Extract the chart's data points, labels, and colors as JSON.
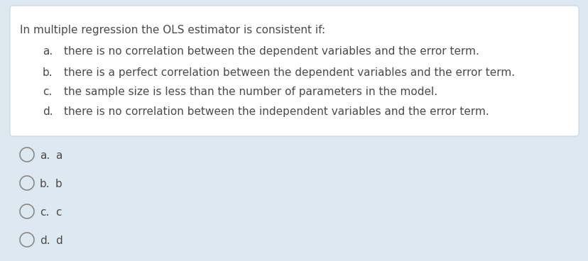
{
  "background_color": "#dce9f0",
  "box_color": "#ffffff",
  "box_edge_color": "#c8d8e0",
  "question": "In multiple regression the OLS estimator is consistent if:",
  "options": [
    {
      "label": "a.",
      "text": "there is no correlation between the dependent variables and the error term."
    },
    {
      "label": "b.",
      "text": "there is a perfect correlation between the dependent variables and the error term."
    },
    {
      "label": "c.",
      "text": "the sample size is less than the number of parameters in the model."
    },
    {
      "label": "d.",
      "text": "there is no correlation between the independent variables and the error term."
    }
  ],
  "answer_choices": [
    "a.",
    "a",
    "b.",
    "b",
    "c.",
    "c",
    "d.",
    "d"
  ],
  "text_color": "#4a4a4a",
  "circle_color": "#888888",
  "font_size": 11,
  "font_size_q": 11
}
